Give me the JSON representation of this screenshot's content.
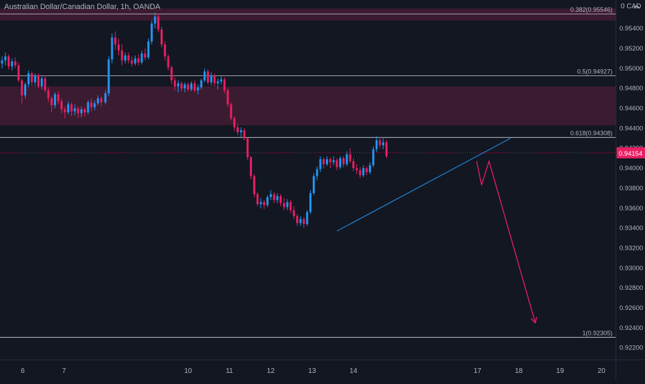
{
  "header": {
    "symbol_title": "Australian Dollar/Canadian Dollar, 1h, OANDA",
    "currency_label": "0 CAD"
  },
  "colors": {
    "background": "#131722",
    "up_candle": "#2196f3",
    "down_candle": "#e91e63",
    "resistance_zone": "#4a1e35",
    "fib_line": "#d1d4dc",
    "trendline": "#2196f3",
    "projection": "#e91e63",
    "axis_text": "#b2b5be",
    "last_price_bg": "#e91e63"
  },
  "icons": [
    "chevron-up-icon",
    "chevron-down-icon"
  ],
  "chart_data": {
    "type": "candlestick",
    "symbol": "AUDCAD",
    "timeframe": "1h",
    "x_ticks": [
      "6",
      "7",
      "10",
      "11",
      "12",
      "13",
      "14",
      "17",
      "18",
      "19",
      "20"
    ],
    "y_ticks": [
      "0.95400",
      "0.95200",
      "0.95000",
      "0.94800",
      "0.94600",
      "0.94400",
      "0.94200",
      "0.94000",
      "0.93800",
      "0.93600",
      "0.93400",
      "0.93200",
      "0.93000",
      "0.92800",
      "0.92600",
      "0.92400",
      "0.92200"
    ],
    "ylim": [
      0.9208,
      0.9563
    ],
    "last_price": "0.94154",
    "fib_levels": [
      {
        "label": "0.382(0.95546)",
        "value": 0.95546
      },
      {
        "label": "0.5(0.94927)",
        "value": 0.94927
      },
      {
        "label": "0.618(0.94308)",
        "value": 0.94308
      },
      {
        "label": "1(0.92305)",
        "value": 0.92305
      }
    ],
    "zones": [
      {
        "from": 0.9548,
        "to": 0.956
      },
      {
        "from": 0.9443,
        "to": 0.9482
      }
    ],
    "trendline": {
      "from": [
        13.6,
        0.9337
      ],
      "to": [
        17.8,
        0.943
      ]
    },
    "projection": [
      [
        16.98,
        0.9407
      ],
      [
        17.1,
        0.9383
      ],
      [
        17.28,
        0.9407
      ],
      [
        18.4,
        0.9245
      ]
    ],
    "candles": [
      [
        5.5,
        0.9505,
        0.9512,
        0.95,
        0.9508
      ],
      [
        5.58,
        0.9508,
        0.9516,
        0.9503,
        0.9512
      ],
      [
        5.66,
        0.9512,
        0.9514,
        0.9499,
        0.9502
      ],
      [
        5.74,
        0.9502,
        0.951,
        0.9498,
        0.9507
      ],
      [
        5.82,
        0.9507,
        0.9511,
        0.95,
        0.9503
      ],
      [
        5.9,
        0.9503,
        0.9506,
        0.9486,
        0.9488
      ],
      [
        5.98,
        0.9488,
        0.949,
        0.9465,
        0.9473
      ],
      [
        6.06,
        0.9473,
        0.9486,
        0.947,
        0.9484
      ],
      [
        6.14,
        0.9484,
        0.9498,
        0.9481,
        0.9495
      ],
      [
        6.22,
        0.9495,
        0.9497,
        0.9482,
        0.9486
      ],
      [
        6.3,
        0.9486,
        0.9495,
        0.9482,
        0.9493
      ],
      [
        6.38,
        0.9493,
        0.9495,
        0.948,
        0.9482
      ],
      [
        6.46,
        0.9482,
        0.9492,
        0.9479,
        0.949
      ],
      [
        6.54,
        0.949,
        0.9493,
        0.9476,
        0.9478
      ],
      [
        6.62,
        0.9478,
        0.9481,
        0.9466,
        0.947
      ],
      [
        6.7,
        0.947,
        0.9472,
        0.9456,
        0.9463
      ],
      [
        6.78,
        0.9463,
        0.9476,
        0.946,
        0.9474
      ],
      [
        6.86,
        0.9474,
        0.9477,
        0.9464,
        0.9467
      ],
      [
        6.94,
        0.9467,
        0.947,
        0.9455,
        0.9459
      ],
      [
        7.02,
        0.9459,
        0.9462,
        0.945,
        0.9456
      ],
      [
        7.1,
        0.9456,
        0.9467,
        0.9454,
        0.9464
      ],
      [
        7.18,
        0.9464,
        0.9466,
        0.9452,
        0.9457
      ],
      [
        7.26,
        0.9457,
        0.9464,
        0.9453,
        0.946
      ],
      [
        7.34,
        0.946,
        0.9462,
        0.945,
        0.9455
      ],
      [
        7.42,
        0.9455,
        0.9462,
        0.9451,
        0.9459
      ],
      [
        7.5,
        0.9459,
        0.9461,
        0.9452,
        0.9456
      ],
      [
        7.58,
        0.9456,
        0.9468,
        0.9454,
        0.9466
      ],
      [
        7.66,
        0.9466,
        0.947,
        0.9457,
        0.9461
      ],
      [
        7.74,
        0.9461,
        0.9468,
        0.9458,
        0.9465
      ],
      [
        7.82,
        0.9465,
        0.9473,
        0.9463,
        0.947
      ],
      [
        7.9,
        0.947,
        0.9472,
        0.9462,
        0.9466
      ],
      [
        8.0,
        0.9466,
        0.9478,
        0.9464,
        0.9475
      ],
      [
        8.08,
        0.9475,
        0.9512,
        0.9472,
        0.9509
      ],
      [
        8.16,
        0.9509,
        0.9535,
        0.9505,
        0.9531
      ],
      [
        8.24,
        0.9531,
        0.9537,
        0.9519,
        0.9524
      ],
      [
        8.32,
        0.9524,
        0.953,
        0.9513,
        0.9518
      ],
      [
        8.4,
        0.9518,
        0.9524,
        0.9503,
        0.9508
      ],
      [
        8.48,
        0.9508,
        0.9516,
        0.9505,
        0.9513
      ],
      [
        8.56,
        0.9513,
        0.9516,
        0.9505,
        0.9508
      ],
      [
        8.64,
        0.9508,
        0.9512,
        0.9502,
        0.9505
      ],
      [
        8.72,
        0.9505,
        0.9513,
        0.9503,
        0.951
      ],
      [
        8.8,
        0.951,
        0.9514,
        0.9503,
        0.9506
      ],
      [
        8.88,
        0.9506,
        0.9518,
        0.9504,
        0.9515
      ],
      [
        8.96,
        0.9515,
        0.952,
        0.9508,
        0.9511
      ],
      [
        9.04,
        0.9511,
        0.953,
        0.9509,
        0.9527
      ],
      [
        9.12,
        0.9527,
        0.9548,
        0.9524,
        0.9545
      ],
      [
        9.2,
        0.9545,
        0.9556,
        0.954,
        0.9552
      ],
      [
        9.28,
        0.9552,
        0.9555,
        0.9536,
        0.9539
      ],
      [
        9.36,
        0.9539,
        0.9542,
        0.9521,
        0.9524
      ],
      [
        9.44,
        0.9524,
        0.9527,
        0.9508,
        0.9512
      ],
      [
        9.52,
        0.9512,
        0.9514,
        0.9498,
        0.9501
      ],
      [
        9.6,
        0.9501,
        0.9503,
        0.9484,
        0.9488
      ],
      [
        9.68,
        0.9488,
        0.9491,
        0.9478,
        0.9482
      ],
      [
        9.76,
        0.9482,
        0.9488,
        0.9476,
        0.9485
      ],
      [
        9.84,
        0.9485,
        0.9487,
        0.9477,
        0.948
      ],
      [
        9.92,
        0.948,
        0.9486,
        0.9476,
        0.9484
      ],
      [
        10.0,
        0.9484,
        0.9486,
        0.9477,
        0.9479
      ],
      [
        10.08,
        0.9479,
        0.9487,
        0.9477,
        0.9485
      ],
      [
        10.16,
        0.9485,
        0.9488,
        0.9476,
        0.9478
      ],
      [
        10.24,
        0.9478,
        0.9484,
        0.9474,
        0.9481
      ],
      [
        10.32,
        0.9481,
        0.949,
        0.9479,
        0.9488
      ],
      [
        10.4,
        0.9488,
        0.95,
        0.9486,
        0.9497
      ],
      [
        10.48,
        0.9497,
        0.9499,
        0.9484,
        0.9486
      ],
      [
        10.56,
        0.9486,
        0.9496,
        0.9483,
        0.9493
      ],
      [
        10.64,
        0.9493,
        0.9495,
        0.9482,
        0.9485
      ],
      [
        10.72,
        0.9485,
        0.949,
        0.9479,
        0.9487
      ],
      [
        10.8,
        0.9487,
        0.9492,
        0.9484,
        0.9489
      ],
      [
        10.88,
        0.9489,
        0.9491,
        0.9475,
        0.9478
      ],
      [
        10.96,
        0.9478,
        0.948,
        0.9461,
        0.9464
      ],
      [
        11.04,
        0.9464,
        0.9466,
        0.9448,
        0.945
      ],
      [
        11.12,
        0.945,
        0.9452,
        0.9437,
        0.9441
      ],
      [
        11.2,
        0.9441,
        0.9444,
        0.9433,
        0.9436
      ],
      [
        11.28,
        0.9436,
        0.9441,
        0.9431,
        0.9438
      ],
      [
        11.36,
        0.9438,
        0.944,
        0.9428,
        0.943
      ],
      [
        11.44,
        0.943,
        0.9431,
        0.9408,
        0.9411
      ],
      [
        11.52,
        0.9411,
        0.9412,
        0.9389,
        0.9392
      ],
      [
        11.6,
        0.9392,
        0.9394,
        0.9371,
        0.9374
      ],
      [
        11.68,
        0.9374,
        0.9376,
        0.9362,
        0.9364
      ],
      [
        11.76,
        0.9364,
        0.937,
        0.936,
        0.9366
      ],
      [
        11.84,
        0.9366,
        0.9368,
        0.9359,
        0.9363
      ],
      [
        11.92,
        0.9363,
        0.9373,
        0.9361,
        0.9371
      ],
      [
        12.0,
        0.9371,
        0.9378,
        0.9368,
        0.9374
      ],
      [
        12.08,
        0.9374,
        0.9376,
        0.9365,
        0.9368
      ],
      [
        12.16,
        0.9368,
        0.9375,
        0.9365,
        0.9372
      ],
      [
        12.24,
        0.9372,
        0.9374,
        0.9362,
        0.9365
      ],
      [
        12.32,
        0.9365,
        0.937,
        0.9358,
        0.9361
      ],
      [
        12.4,
        0.9361,
        0.9369,
        0.9358,
        0.9366
      ],
      [
        12.48,
        0.9366,
        0.9368,
        0.9355,
        0.9358
      ],
      [
        12.56,
        0.9358,
        0.9362,
        0.9349,
        0.9352
      ],
      [
        12.64,
        0.9352,
        0.9354,
        0.9342,
        0.9345
      ],
      [
        12.72,
        0.9345,
        0.9352,
        0.9342,
        0.9349
      ],
      [
        12.8,
        0.9349,
        0.9351,
        0.934,
        0.9344
      ],
      [
        12.88,
        0.9344,
        0.9358,
        0.9342,
        0.9356
      ],
      [
        12.96,
        0.9356,
        0.9378,
        0.9354,
        0.9375
      ],
      [
        13.04,
        0.9375,
        0.9395,
        0.9373,
        0.9392
      ],
      [
        13.12,
        0.9392,
        0.9402,
        0.9388,
        0.9399
      ],
      [
        13.2,
        0.9399,
        0.9412,
        0.9396,
        0.9409
      ],
      [
        13.28,
        0.9409,
        0.9411,
        0.94,
        0.9404
      ],
      [
        13.36,
        0.9404,
        0.9412,
        0.9402,
        0.9409
      ],
      [
        13.44,
        0.9409,
        0.9411,
        0.94,
        0.9406
      ],
      [
        13.52,
        0.9406,
        0.9412,
        0.9403,
        0.9408
      ],
      [
        13.6,
        0.9408,
        0.941,
        0.9398,
        0.9401
      ],
      [
        13.68,
        0.9401,
        0.9412,
        0.9399,
        0.941
      ],
      [
        13.76,
        0.941,
        0.9412,
        0.9401,
        0.9404
      ],
      [
        13.84,
        0.9404,
        0.9417,
        0.9402,
        0.9414
      ],
      [
        13.92,
        0.9414,
        0.942,
        0.9405,
        0.9407
      ],
      [
        14.0,
        0.9407,
        0.941,
        0.9397,
        0.94
      ],
      [
        14.08,
        0.94,
        0.9404,
        0.9394,
        0.9398
      ],
      [
        14.16,
        0.9398,
        0.9401,
        0.939,
        0.9393
      ],
      [
        14.24,
        0.9393,
        0.9403,
        0.9391,
        0.94
      ],
      [
        14.32,
        0.94,
        0.9402,
        0.9393,
        0.9396
      ],
      [
        14.4,
        0.9396,
        0.9406,
        0.9394,
        0.9403
      ],
      [
        14.48,
        0.9403,
        0.9422,
        0.9401,
        0.9419
      ],
      [
        14.56,
        0.9419,
        0.9432,
        0.9416,
        0.9428
      ],
      [
        14.64,
        0.9428,
        0.9431,
        0.942,
        0.9423
      ],
      [
        14.72,
        0.9423,
        0.943,
        0.9419,
        0.9426
      ],
      [
        14.8,
        0.9426,
        0.9428,
        0.941,
        0.9412
      ]
    ]
  }
}
